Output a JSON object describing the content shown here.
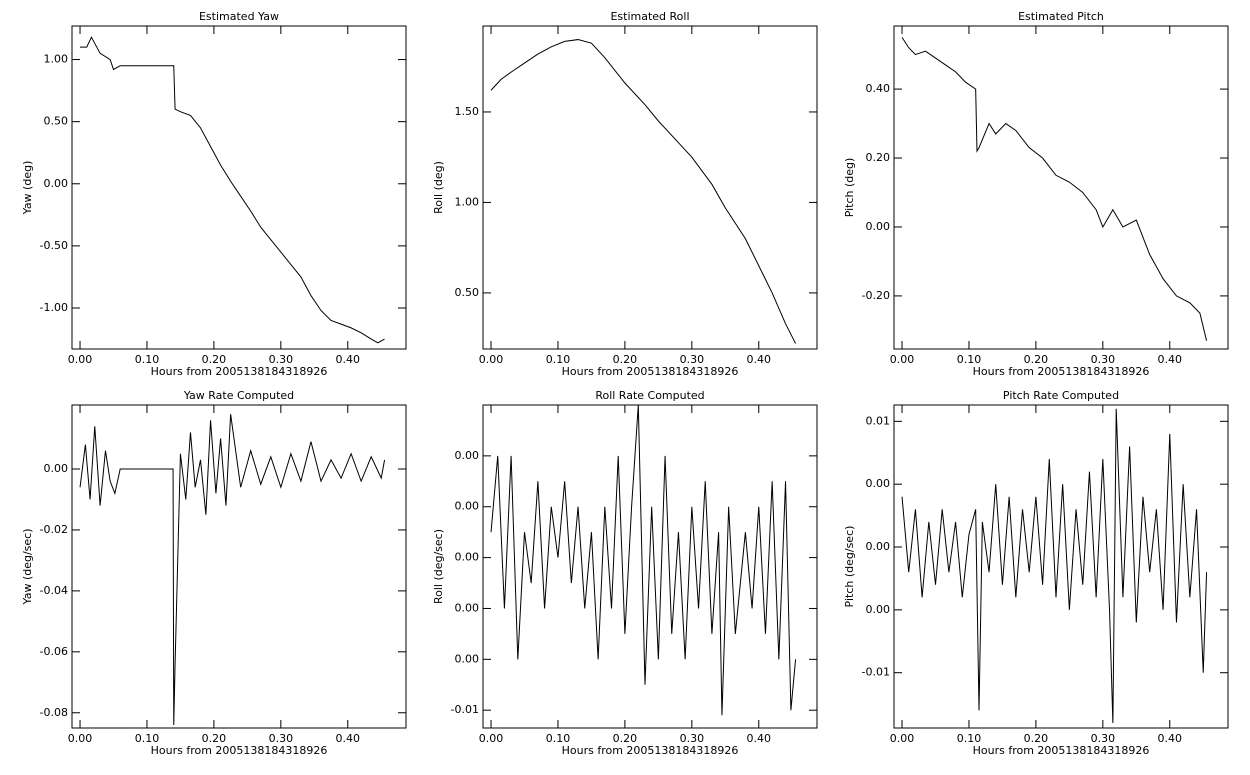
{
  "chart_data": [
    {
      "type": "line",
      "title": "Estimated Yaw",
      "x_label": "Hours from 2005138184318926",
      "y_label": "Yaw (deg)",
      "color": "#000000",
      "x": [
        0,
        0.01,
        0.017,
        0.03,
        0.045,
        0.05,
        0.06,
        0.1,
        0.14,
        0.142,
        0.15,
        0.165,
        0.18,
        0.195,
        0.21,
        0.225,
        0.24,
        0.255,
        0.27,
        0.285,
        0.3,
        0.315,
        0.33,
        0.345,
        0.36,
        0.375,
        0.39,
        0.405,
        0.42,
        0.435,
        0.445,
        0.455
      ],
      "values": [
        1.1,
        1.1,
        1.18,
        1.05,
        1.0,
        0.92,
        0.95,
        0.95,
        0.95,
        0.6,
        0.58,
        0.55,
        0.45,
        0.3,
        0.15,
        0.02,
        -0.1,
        -0.22,
        -0.35,
        -0.45,
        -0.55,
        -0.65,
        -0.75,
        -0.9,
        -1.02,
        -1.1,
        -1.13,
        -1.16,
        -1.2,
        -1.25,
        -1.28,
        -1.25
      ],
      "xlim": [
        -0.012,
        0.487
      ],
      "ylim": [
        -1.33,
        1.27
      ],
      "xticks": [
        {
          "value": 0,
          "label": "0.00"
        },
        {
          "value": 0.1,
          "label": "0.10"
        },
        {
          "value": 0.2,
          "label": "0.20"
        },
        {
          "value": 0.3,
          "label": "0.30"
        },
        {
          "value": 0.4,
          "label": "0.40"
        }
      ],
      "yticks": [
        {
          "value": 1,
          "label": "1.00"
        },
        {
          "value": 0.5,
          "label": "0.50"
        },
        {
          "value": 0,
          "label": "0.00"
        },
        {
          "value": -0.5,
          "label": "-0.50"
        },
        {
          "value": -1,
          "label": "-1.00"
        }
      ]
    },
    {
      "type": "line",
      "title": "Estimated Roll",
      "x_label": "Hours from 2005138184318926",
      "y_label": "Roll (deg)",
      "color": "#000000",
      "x": [
        0,
        0.015,
        0.03,
        0.05,
        0.07,
        0.09,
        0.11,
        0.13,
        0.15,
        0.17,
        0.2,
        0.23,
        0.25,
        0.28,
        0.3,
        0.33,
        0.35,
        0.38,
        0.4,
        0.42,
        0.44,
        0.455
      ],
      "values": [
        1.62,
        1.68,
        1.72,
        1.77,
        1.82,
        1.86,
        1.89,
        1.9,
        1.88,
        1.8,
        1.66,
        1.54,
        1.45,
        1.33,
        1.25,
        1.1,
        0.97,
        0.8,
        0.65,
        0.5,
        0.33,
        0.22
      ],
      "xlim": [
        -0.012,
        0.487
      ],
      "ylim": [
        0.19,
        1.975
      ],
      "xticks": [
        {
          "value": 0,
          "label": "0.00"
        },
        {
          "value": 0.1,
          "label": "0.10"
        },
        {
          "value": 0.2,
          "label": "0.20"
        },
        {
          "value": 0.3,
          "label": "0.30"
        },
        {
          "value": 0.4,
          "label": "0.40"
        }
      ],
      "yticks": [
        {
          "value": 1.5,
          "label": "1.50"
        },
        {
          "value": 1,
          "label": "1.00"
        },
        {
          "value": 0.5,
          "label": "0.50"
        }
      ]
    },
    {
      "type": "line",
      "title": "Estimated Pitch",
      "x_label": "Hours from 2005138184318926",
      "y_label": "Pitch (deg)",
      "color": "#000000",
      "x": [
        0,
        0.01,
        0.02,
        0.035,
        0.05,
        0.065,
        0.08,
        0.095,
        0.11,
        0.112,
        0.115,
        0.13,
        0.14,
        0.155,
        0.17,
        0.19,
        0.21,
        0.23,
        0.25,
        0.27,
        0.29,
        0.3,
        0.315,
        0.33,
        0.35,
        0.37,
        0.39,
        0.41,
        0.43,
        0.445,
        0.455
      ],
      "values": [
        0.55,
        0.52,
        0.5,
        0.51,
        0.49,
        0.47,
        0.45,
        0.42,
        0.4,
        0.22,
        0.23,
        0.3,
        0.27,
        0.3,
        0.28,
        0.23,
        0.2,
        0.15,
        0.13,
        0.1,
        0.05,
        0.0,
        0.05,
        0.0,
        0.02,
        -0.08,
        -0.15,
        -0.2,
        -0.22,
        -0.25,
        -0.33
      ],
      "xlim": [
        -0.012,
        0.487
      ],
      "ylim": [
        -0.354,
        0.583
      ],
      "xticks": [
        {
          "value": 0,
          "label": "0.00"
        },
        {
          "value": 0.1,
          "label": "0.10"
        },
        {
          "value": 0.2,
          "label": "0.20"
        },
        {
          "value": 0.3,
          "label": "0.30"
        },
        {
          "value": 0.4,
          "label": "0.40"
        }
      ],
      "yticks": [
        {
          "value": 0.4,
          "label": "0.40"
        },
        {
          "value": 0.2,
          "label": "0.20"
        },
        {
          "value": 0,
          "label": "0.00"
        },
        {
          "value": -0.2,
          "label": "-0.20"
        }
      ]
    },
    {
      "type": "line",
      "title": "Yaw Rate Computed",
      "x_label": "Hours from 2005138184318926",
      "y_label": "Yaw (deg/sec)",
      "color": "#000000",
      "x": [
        0,
        0.008,
        0.015,
        0.022,
        0.03,
        0.038,
        0.045,
        0.052,
        0.06,
        0.1,
        0.139,
        0.14,
        0.142,
        0.15,
        0.158,
        0.165,
        0.172,
        0.18,
        0.188,
        0.195,
        0.203,
        0.21,
        0.218,
        0.225,
        0.24,
        0.255,
        0.27,
        0.285,
        0.3,
        0.315,
        0.33,
        0.345,
        0.36,
        0.375,
        0.39,
        0.405,
        0.42,
        0.435,
        0.45,
        0.455
      ],
      "values": [
        -0.006,
        0.008,
        -0.01,
        0.014,
        -0.012,
        0.006,
        -0.004,
        -0.008,
        0,
        0,
        0,
        -0.084,
        -0.064,
        0.005,
        -0.01,
        0.012,
        -0.006,
        0.003,
        -0.015,
        0.016,
        -0.008,
        0.01,
        -0.012,
        0.018,
        -0.006,
        0.006,
        -0.005,
        0.004,
        -0.006,
        0.005,
        -0.004,
        0.009,
        -0.004,
        0.003,
        -0.003,
        0.005,
        -0.004,
        0.004,
        -0.003,
        0.003
      ],
      "xlim": [
        -0.012,
        0.487
      ],
      "ylim": [
        -0.085,
        0.021
      ],
      "xticks": [
        {
          "value": 0,
          "label": "0.00"
        },
        {
          "value": 0.1,
          "label": "0.10"
        },
        {
          "value": 0.2,
          "label": "0.20"
        },
        {
          "value": 0.3,
          "label": "0.30"
        },
        {
          "value": 0.4,
          "label": "0.40"
        }
      ],
      "yticks": [
        {
          "value": 0,
          "label": "0.00"
        },
        {
          "value": -0.02,
          "label": "-0.02"
        },
        {
          "value": -0.04,
          "label": "-0.04"
        },
        {
          "value": -0.06,
          "label": "-0.06"
        },
        {
          "value": -0.08,
          "label": "-0.08"
        }
      ]
    },
    {
      "type": "line",
      "title": "Roll Rate Computed",
      "x_label": "Hours from 2005138184318926",
      "y_label": "Roll (deg/sec)",
      "color": "#000000",
      "x": [
        0,
        0.01,
        0.02,
        0.03,
        0.04,
        0.05,
        0.06,
        0.07,
        0.08,
        0.09,
        0.1,
        0.11,
        0.12,
        0.13,
        0.14,
        0.15,
        0.16,
        0.17,
        0.18,
        0.19,
        0.2,
        0.21,
        0.22,
        0.23,
        0.24,
        0.25,
        0.26,
        0.27,
        0.28,
        0.29,
        0.3,
        0.31,
        0.32,
        0.33,
        0.34,
        0.345,
        0.355,
        0.365,
        0.38,
        0.39,
        0.4,
        0.41,
        0.42,
        0.43,
        0.44,
        0.448,
        0.455
      ],
      "values": [
        0.001,
        0.004,
        -0.002,
        0.004,
        -0.004,
        0.001,
        -0.001,
        0.003,
        -0.002,
        0.002,
        0.0,
        0.003,
        -0.001,
        0.002,
        -0.002,
        0.001,
        -0.004,
        0.002,
        -0.002,
        0.004,
        -0.003,
        0.002,
        0.006,
        -0.005,
        0.002,
        -0.004,
        0.004,
        -0.003,
        0.001,
        -0.004,
        0.002,
        -0.002,
        0.003,
        -0.003,
        0.001,
        -0.0062,
        0.002,
        -0.003,
        0.001,
        -0.002,
        0.002,
        -0.003,
        0.003,
        -0.004,
        0.003,
        -0.006,
        -0.004
      ],
      "xlim": [
        -0.012,
        0.487
      ],
      "ylim": [
        -0.0067,
        0.006
      ],
      "xticks": [
        {
          "value": 0,
          "label": "0.00"
        },
        {
          "value": 0.1,
          "label": "0.10"
        },
        {
          "value": 0.2,
          "label": "0.20"
        },
        {
          "value": 0.3,
          "label": "0.30"
        },
        {
          "value": 0.4,
          "label": "0.40"
        }
      ],
      "yticks": [
        {
          "value": 0.004,
          "label": "0.00"
        },
        {
          "value": 0.002,
          "label": "0.00"
        },
        {
          "value": 0,
          "label": "0.00"
        },
        {
          "value": -0.002,
          "label": "0.00"
        },
        {
          "value": -0.004,
          "label": "0.00"
        },
        {
          "value": -0.006,
          "label": "-0.01"
        }
      ]
    },
    {
      "type": "line",
      "title": "Pitch Rate Computed",
      "x_label": "Hours from 2005138184318926",
      "y_label": "Pitch (deg/sec)",
      "color": "#000000",
      "x": [
        0,
        0.01,
        0.02,
        0.03,
        0.04,
        0.05,
        0.06,
        0.07,
        0.08,
        0.09,
        0.1,
        0.11,
        0.115,
        0.12,
        0.13,
        0.14,
        0.15,
        0.16,
        0.17,
        0.18,
        0.19,
        0.2,
        0.21,
        0.22,
        0.23,
        0.24,
        0.25,
        0.26,
        0.27,
        0.28,
        0.29,
        0.3,
        0.31,
        0.315,
        0.32,
        0.33,
        0.34,
        0.35,
        0.36,
        0.37,
        0.38,
        0.39,
        0.4,
        0.41,
        0.42,
        0.43,
        0.44,
        0.45,
        0.455
      ],
      "values": [
        0.004,
        -0.002,
        0.003,
        -0.004,
        0.002,
        -0.003,
        0.003,
        -0.002,
        0.002,
        -0.004,
        0.001,
        0.003,
        -0.013,
        0.002,
        -0.002,
        0.005,
        -0.003,
        0.004,
        -0.004,
        0.003,
        -0.002,
        0.004,
        -0.003,
        0.007,
        -0.004,
        0.005,
        -0.005,
        0.003,
        -0.003,
        0.006,
        -0.004,
        0.007,
        -0.005,
        -0.014,
        0.011,
        -0.004,
        0.008,
        -0.006,
        0.004,
        -0.002,
        0.003,
        -0.005,
        0.009,
        -0.006,
        0.005,
        -0.004,
        0.003,
        -0.01,
        -0.002
      ],
      "xlim": [
        -0.012,
        0.487
      ],
      "ylim": [
        -0.0144,
        0.0113
      ],
      "xticks": [
        {
          "value": 0,
          "label": "0.00"
        },
        {
          "value": 0.1,
          "label": "0.10"
        },
        {
          "value": 0.2,
          "label": "0.20"
        },
        {
          "value": 0.3,
          "label": "0.30"
        },
        {
          "value": 0.4,
          "label": "0.40"
        }
      ],
      "yticks": [
        {
          "value": 0.01,
          "label": "0.01"
        },
        {
          "value": 0.005,
          "label": "0.00"
        },
        {
          "value": 0,
          "label": "0.00"
        },
        {
          "value": -0.005,
          "label": "0.00"
        },
        {
          "value": -0.01,
          "label": "-0.01"
        }
      ]
    }
  ]
}
